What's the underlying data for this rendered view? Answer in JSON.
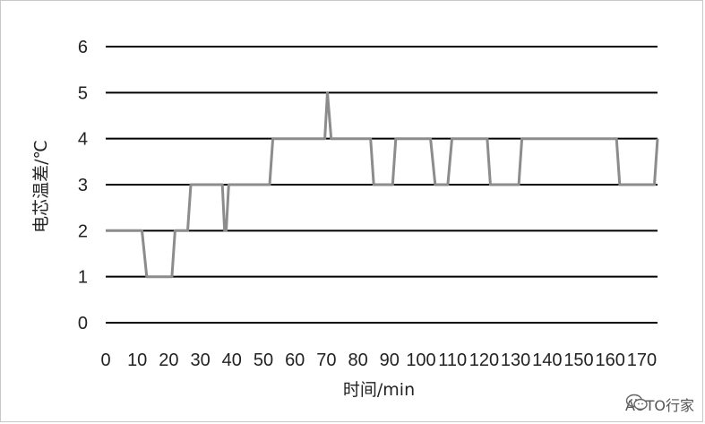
{
  "watermark": {
    "text": "AUTO行家",
    "icon": "wechat-icon"
  },
  "chart_data": {
    "type": "line",
    "title": "",
    "xlabel": "时间/min",
    "ylabel": "电芯温差/℃",
    "xlim": [
      0,
      175
    ],
    "ylim": [
      0,
      6
    ],
    "xticks": [
      0,
      10,
      20,
      30,
      40,
      50,
      60,
      70,
      80,
      90,
      100,
      110,
      120,
      130,
      140,
      150,
      160,
      170
    ],
    "yticks": [
      0,
      1,
      2,
      3,
      4,
      5,
      6
    ],
    "grid": "horizontal",
    "line_color": "#8c8c8c",
    "grid_color": "#000000",
    "series": [
      {
        "x": [
          0,
          11.5,
          13,
          21,
          22,
          26,
          27,
          37,
          37.7,
          38.2,
          39,
          52,
          53,
          69.5,
          70.3,
          71.5,
          84,
          85,
          91,
          92,
          103,
          104.5,
          108.5,
          109.8,
          121,
          122,
          131,
          132,
          162,
          163,
          174,
          175
        ],
        "y": [
          2,
          2,
          1,
          1,
          2,
          2,
          3,
          3,
          2,
          2,
          3,
          3,
          4,
          4,
          5,
          4,
          4,
          3,
          3,
          4,
          4,
          3,
          3,
          4,
          4,
          3,
          3,
          4,
          4,
          3,
          3,
          4
        ]
      }
    ]
  }
}
